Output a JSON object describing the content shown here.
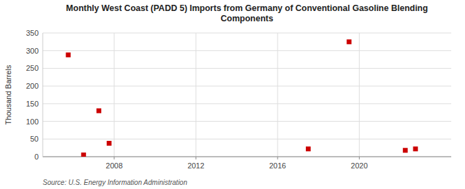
{
  "chart_data": {
    "type": "scatter",
    "title": "Monthly West Coast (PADD 5) Imports from Germany of Conventional Gasoline Blending\nComponents",
    "y_label": "Thousand Barrels",
    "source": "Source: U.S. Energy Information Administration",
    "x": [
      2005.75,
      2006.5,
      2007.25,
      2007.75,
      2017.5,
      2019.5,
      2022.25,
      2022.75
    ],
    "values": [
      288,
      5,
      130,
      38,
      22,
      325,
      18,
      22
    ],
    "color": "#cc0000",
    "marker": "square",
    "xlim": [
      2004.5,
      2024.5
    ],
    "xticks": [
      2008,
      2012,
      2016,
      2020
    ],
    "ylim": [
      0,
      350
    ],
    "yticks": [
      0,
      50,
      100,
      150,
      200,
      250,
      300,
      350
    ],
    "grid": true
  }
}
